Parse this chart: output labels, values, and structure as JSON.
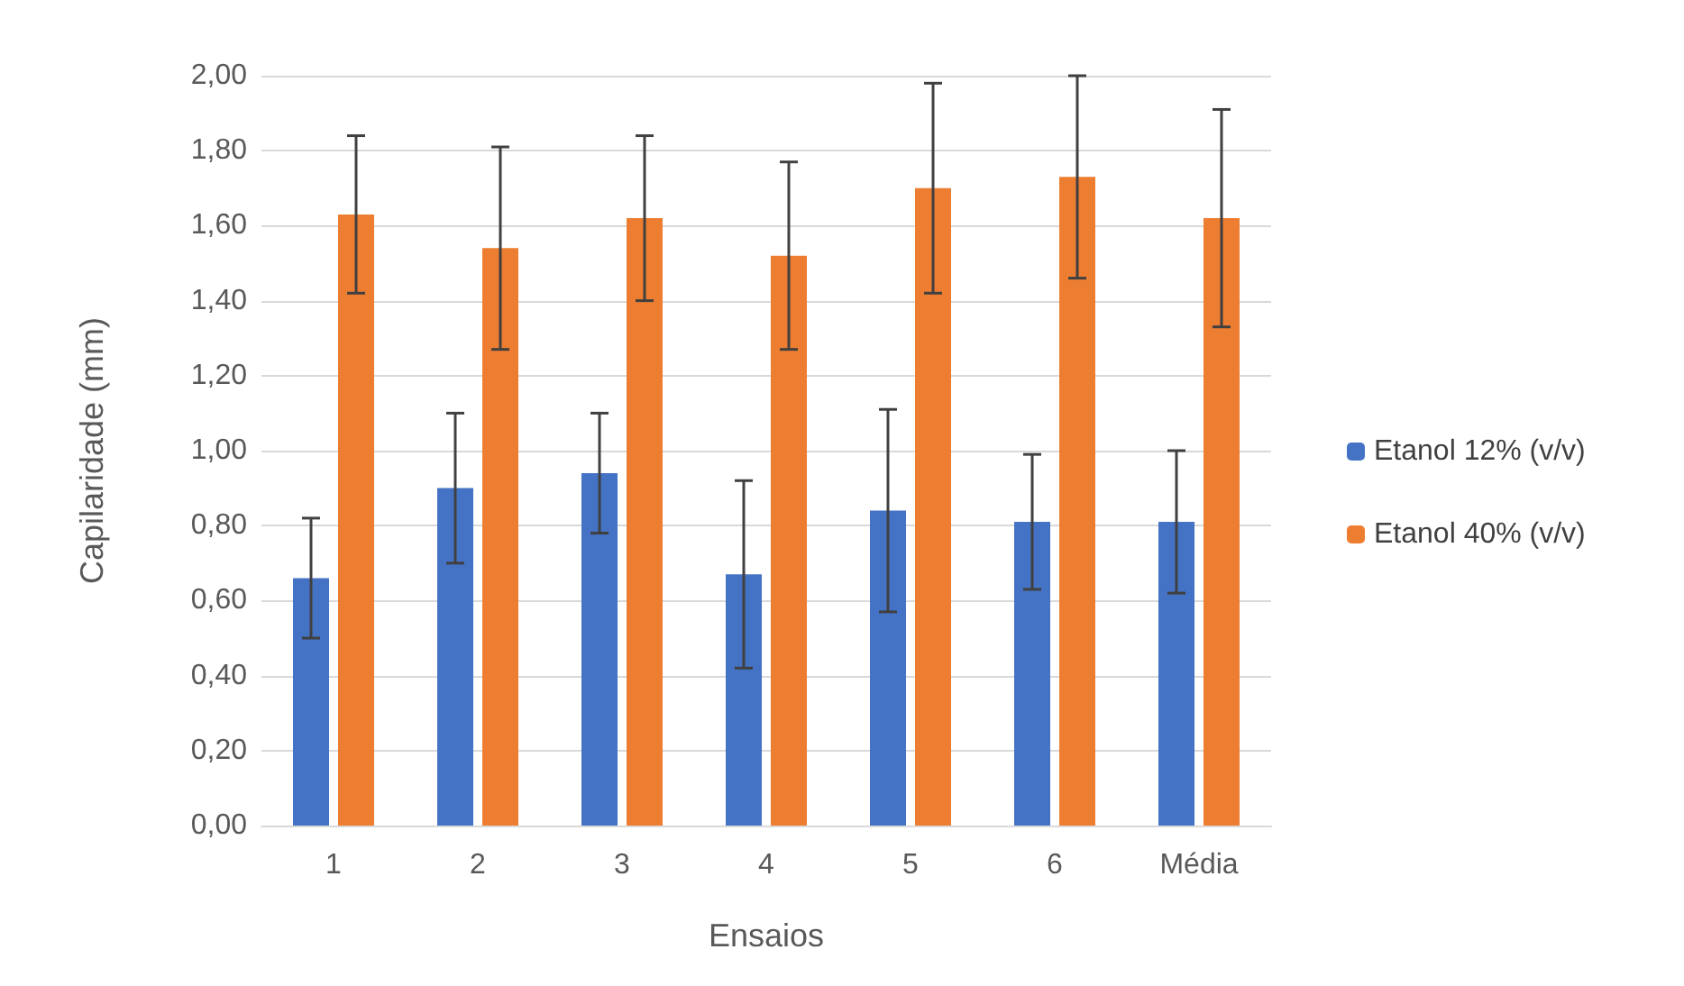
{
  "chart_data": {
    "type": "bar",
    "xlabel": "Ensaios",
    "ylabel": "Capilaridade (mm)",
    "categories": [
      "1",
      "2",
      "3",
      "4",
      "5",
      "6",
      "Média"
    ],
    "series": [
      {
        "name": "Etanol 12% (v/v)",
        "color": "#4472c4",
        "values": [
          0.66,
          0.9,
          0.94,
          0.67,
          0.84,
          0.81,
          0.81
        ],
        "errors": [
          0.16,
          0.2,
          0.16,
          0.25,
          0.27,
          0.18,
          0.19
        ]
      },
      {
        "name": "Etanol 40% (v/v)",
        "color": "#ed7d31",
        "values": [
          1.63,
          1.54,
          1.62,
          1.52,
          1.7,
          1.73,
          1.62
        ],
        "errors": [
          0.21,
          0.27,
          0.22,
          0.25,
          0.28,
          0.27,
          0.29
        ]
      }
    ],
    "ylim": [
      0,
      2
    ],
    "yticks": [
      {
        "value": 0,
        "label": "0,00"
      },
      {
        "value": 0.2,
        "label": "0,20"
      },
      {
        "value": 0.4,
        "label": "0,40"
      },
      {
        "value": 0.6,
        "label": "0,60"
      },
      {
        "value": 0.8,
        "label": "0,80"
      },
      {
        "value": 1,
        "label": "1,00"
      },
      {
        "value": 1.2,
        "label": "1,20"
      },
      {
        "value": 1.4,
        "label": "1,40"
      },
      {
        "value": 1.6,
        "label": "1,60"
      },
      {
        "value": 1.8,
        "label": "1,80"
      },
      {
        "value": 2,
        "label": "2,00"
      }
    ],
    "grid": "y",
    "legend": "right"
  }
}
